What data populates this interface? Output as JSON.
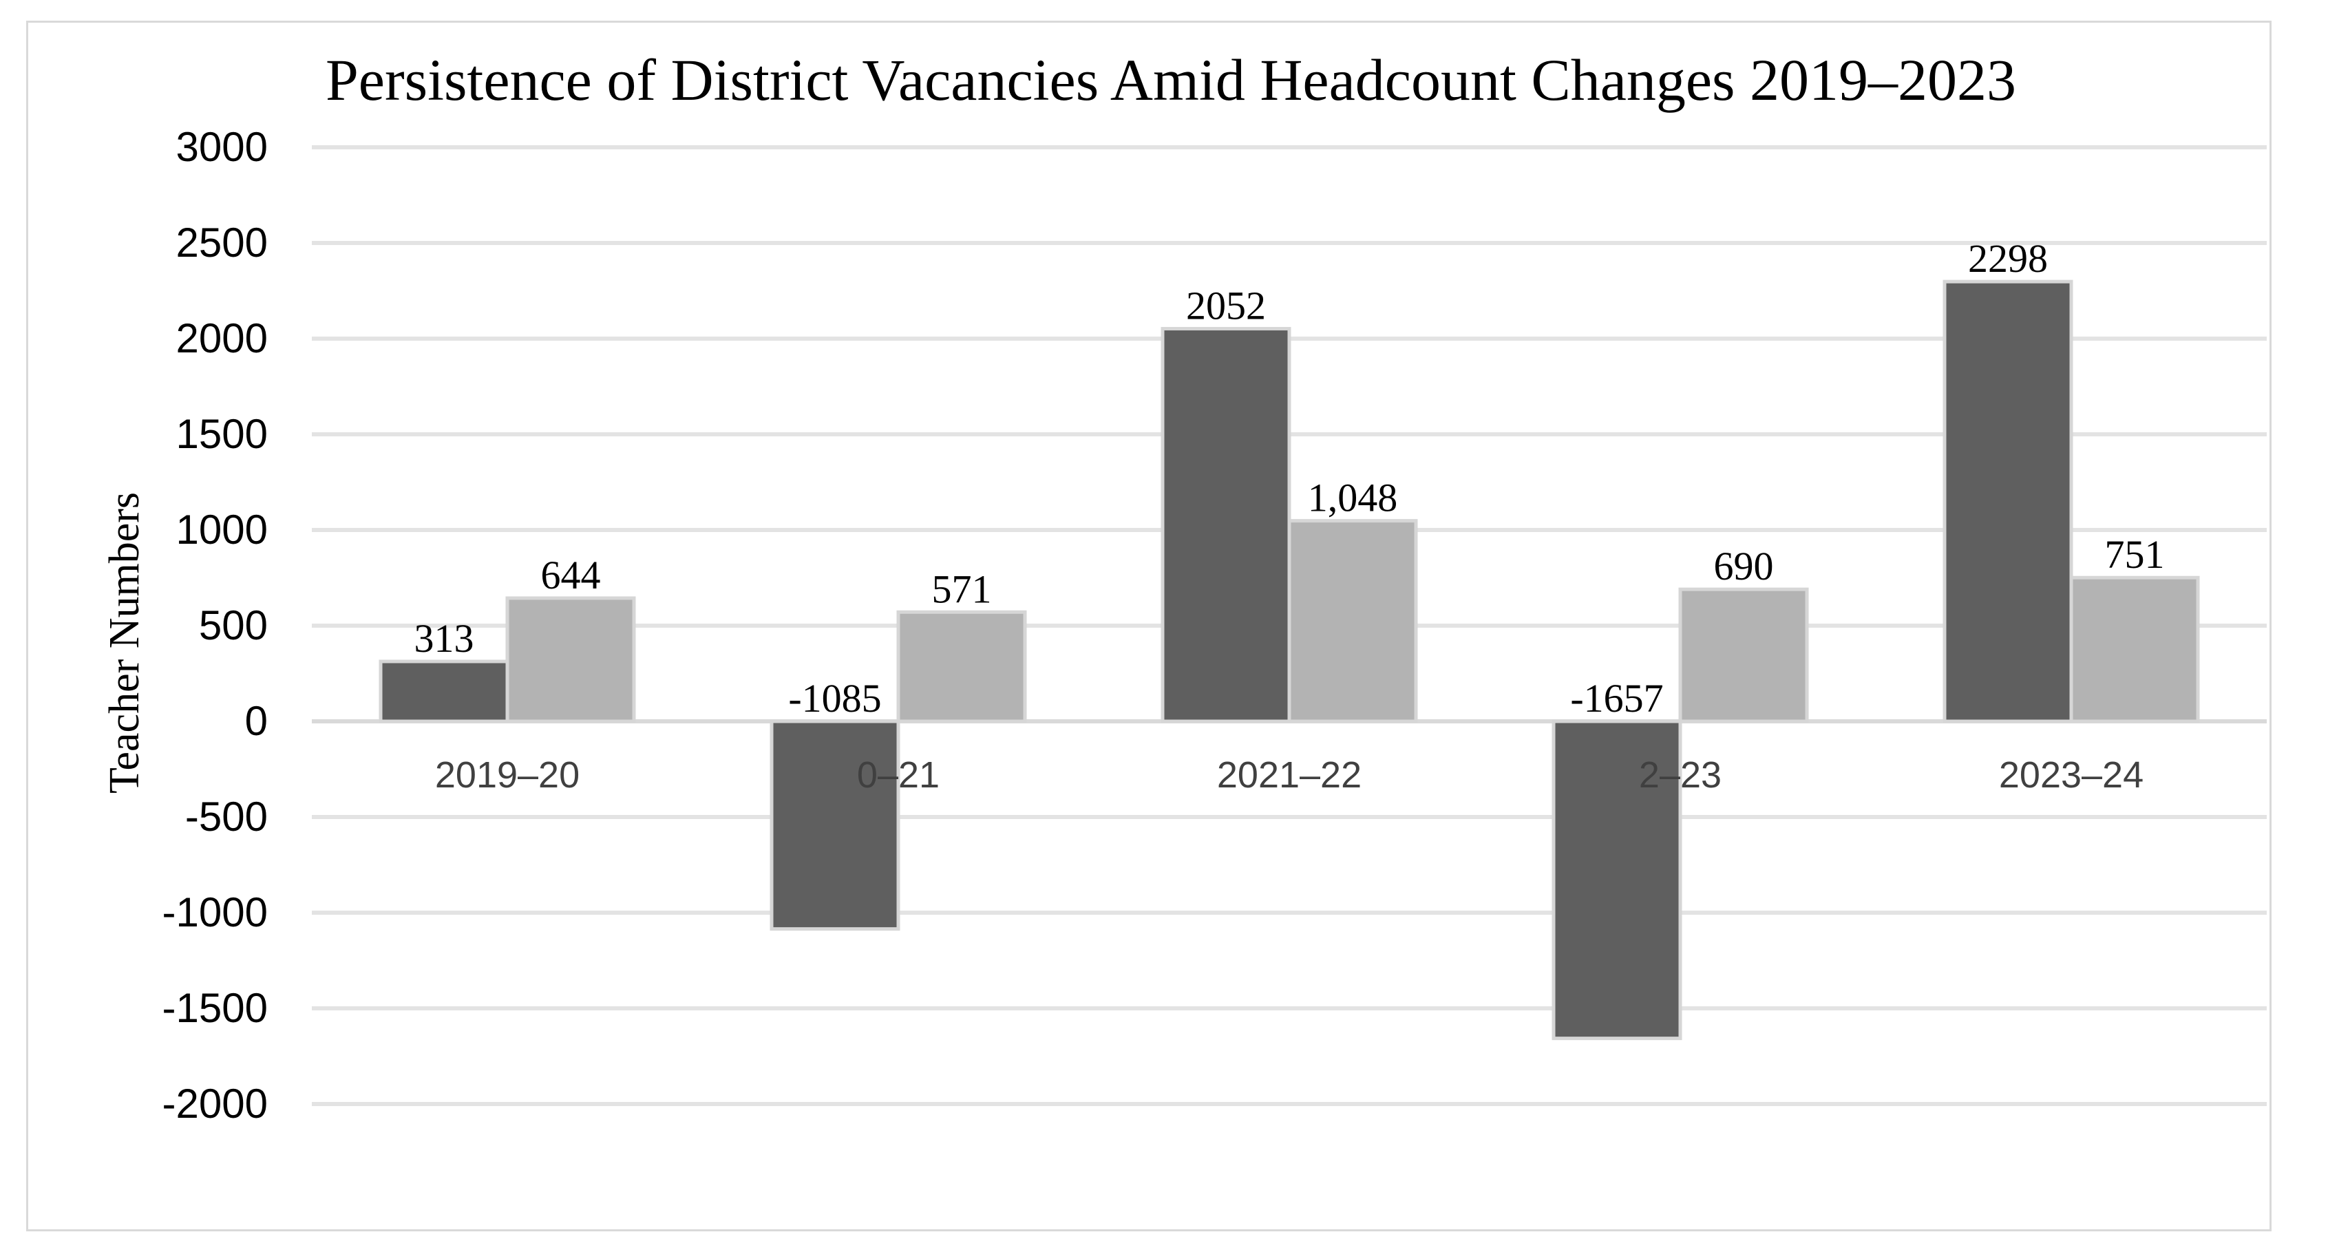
{
  "chart_data": {
    "type": "bar",
    "title": "Persistence of District Vacancies Amid Headcount Changes 2019–2023",
    "xlabel": "",
    "ylabel": "Teacher Numbers",
    "categories": [
      "2019–20",
      "2020–21",
      "2021–22",
      "2022–23",
      "2023–24"
    ],
    "category_labels": [
      "2019–20",
      "0–21",
      "2021–22",
      "2–23",
      "2023–24"
    ],
    "series": [
      {
        "color": "#5f5f5f",
        "values": [
          313,
          -1085,
          2052,
          -1657,
          2298
        ],
        "labels": [
          "313",
          "-1085",
          "2052",
          "-1657",
          "2298"
        ]
      },
      {
        "color": "#b3b3b3",
        "values": [
          644,
          571,
          1048,
          690,
          751
        ],
        "labels": [
          "644",
          "571",
          "1,048",
          "690",
          "751"
        ]
      }
    ],
    "ylim": [
      -2000,
      3000
    ],
    "yticks": [
      3000,
      2500,
      2000,
      1500,
      1000,
      500,
      0,
      -500,
      -1000,
      -1500,
      -2000
    ],
    "grid": true,
    "legend": "none"
  }
}
